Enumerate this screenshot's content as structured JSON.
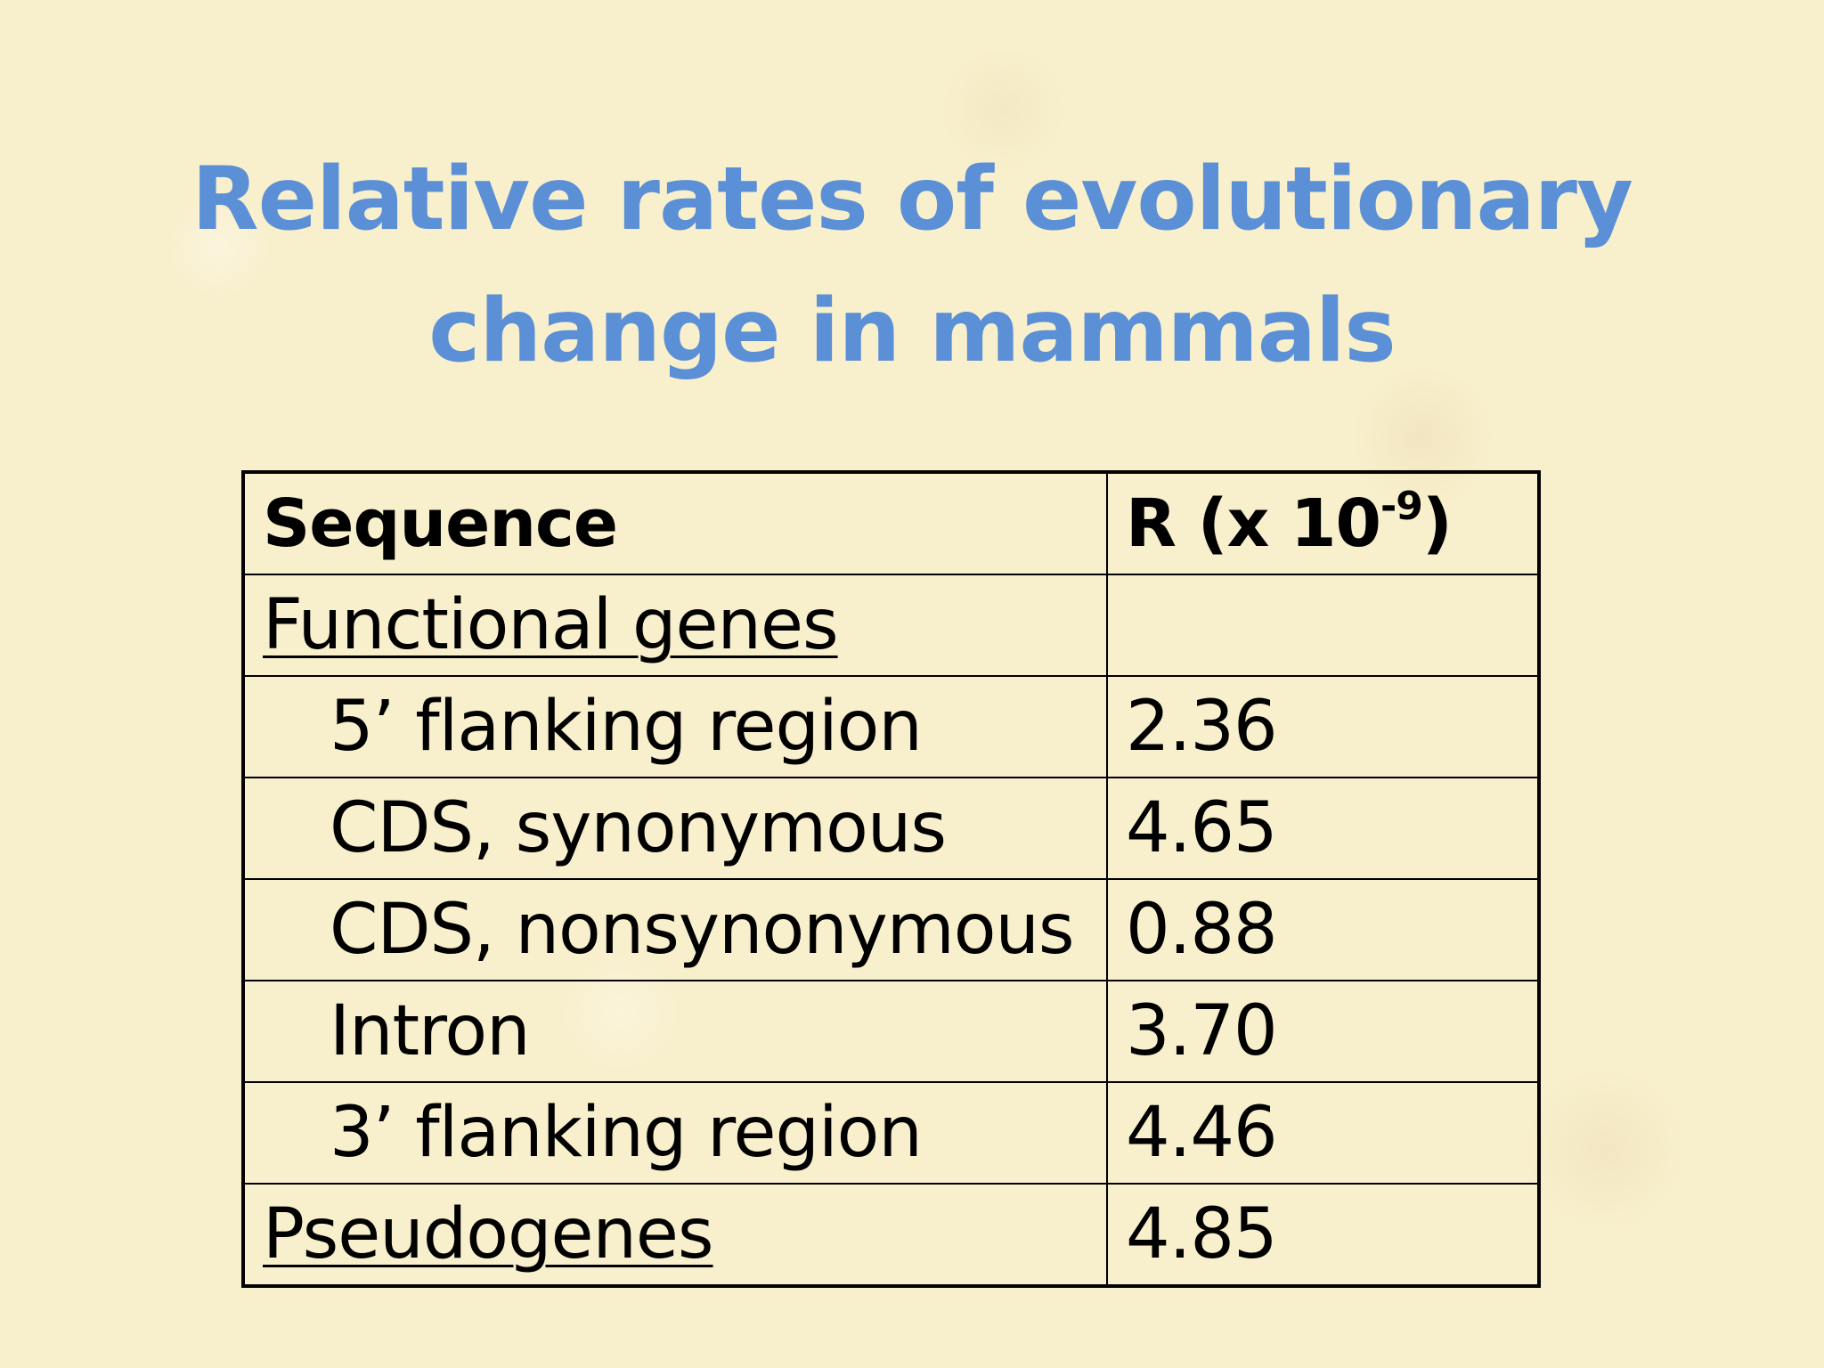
{
  "title": {
    "line1": "Relative rates of evolutionary",
    "line2": "change in mammals"
  },
  "table": {
    "header": {
      "sequence": "Sequence",
      "rate_prefix": "R (x 10",
      "rate_exponent": "-9",
      "rate_suffix": ")"
    },
    "rows": [
      {
        "label": "Functional genes",
        "value": ""
      },
      {
        "label": "5’ flanking region",
        "value": "2.36"
      },
      {
        "label": "CDS, synonymous",
        "value": "4.65"
      },
      {
        "label": "CDS, nonsynonymous",
        "value": "0.88"
      },
      {
        "label": "Intron",
        "value": "3.70"
      },
      {
        "label": "3’ flanking region",
        "value": "4.46"
      },
      {
        "label": "Pseudogenes",
        "value": "4.85"
      }
    ]
  }
}
